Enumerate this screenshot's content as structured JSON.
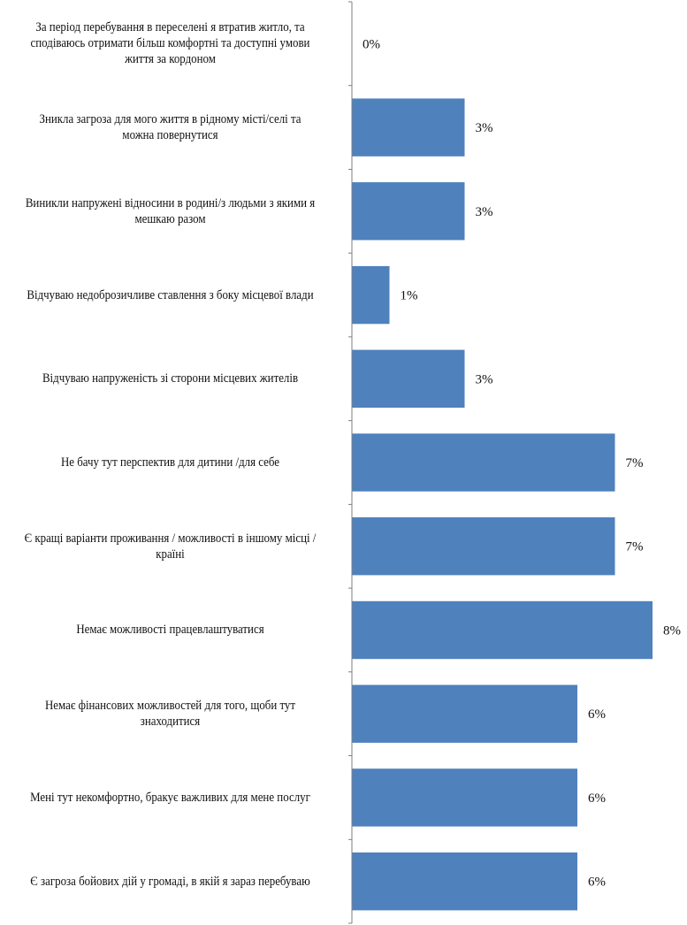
{
  "chart_data": {
    "type": "bar",
    "orientation": "horizontal",
    "categories": [
      "За період перебування в переселені я втратив житло, та сподіваюсь отримати  більш комфортні  та доступні умови життя за кордоном",
      "Зникла загроза для мого життя в рідному місті/селі та можна повернутися",
      "Виникли напружені відносини в родині/з людьми з якими я мешкаю разом",
      "Відчуваю недоброзичливе ставлення з боку місцевої влади",
      "Відчуваю напруженість зі сторони місцевих жителів",
      "Не бачу тут перспектив  для дитини /для себе",
      "Є кращі варіанти проживання / можливості в іншому місці / країні",
      "Немає можливості працевлаштуватися",
      "Немає фінансових можливостей для того, щоби тут знаходитися",
      "Мені тут некомфортно, бракує важливих для мене послуг",
      "Є загроза бойових дій у громаді, в якій я зараз перебуваю"
    ],
    "values": [
      0,
      3,
      3,
      1,
      3,
      7,
      7,
      8,
      6,
      6,
      6
    ],
    "data_labels": [
      "0%",
      "3%",
      "3%",
      "1%",
      "3%",
      "7%",
      "7%",
      "8%",
      "6%",
      "6%",
      "6%"
    ],
    "title": "",
    "xlabel": "",
    "ylabel": "",
    "xlim": [
      0,
      8.1
    ],
    "grid": false,
    "legend": "none",
    "bar_color": "#4F81BD",
    "axis_color": "#7F7F7F"
  }
}
